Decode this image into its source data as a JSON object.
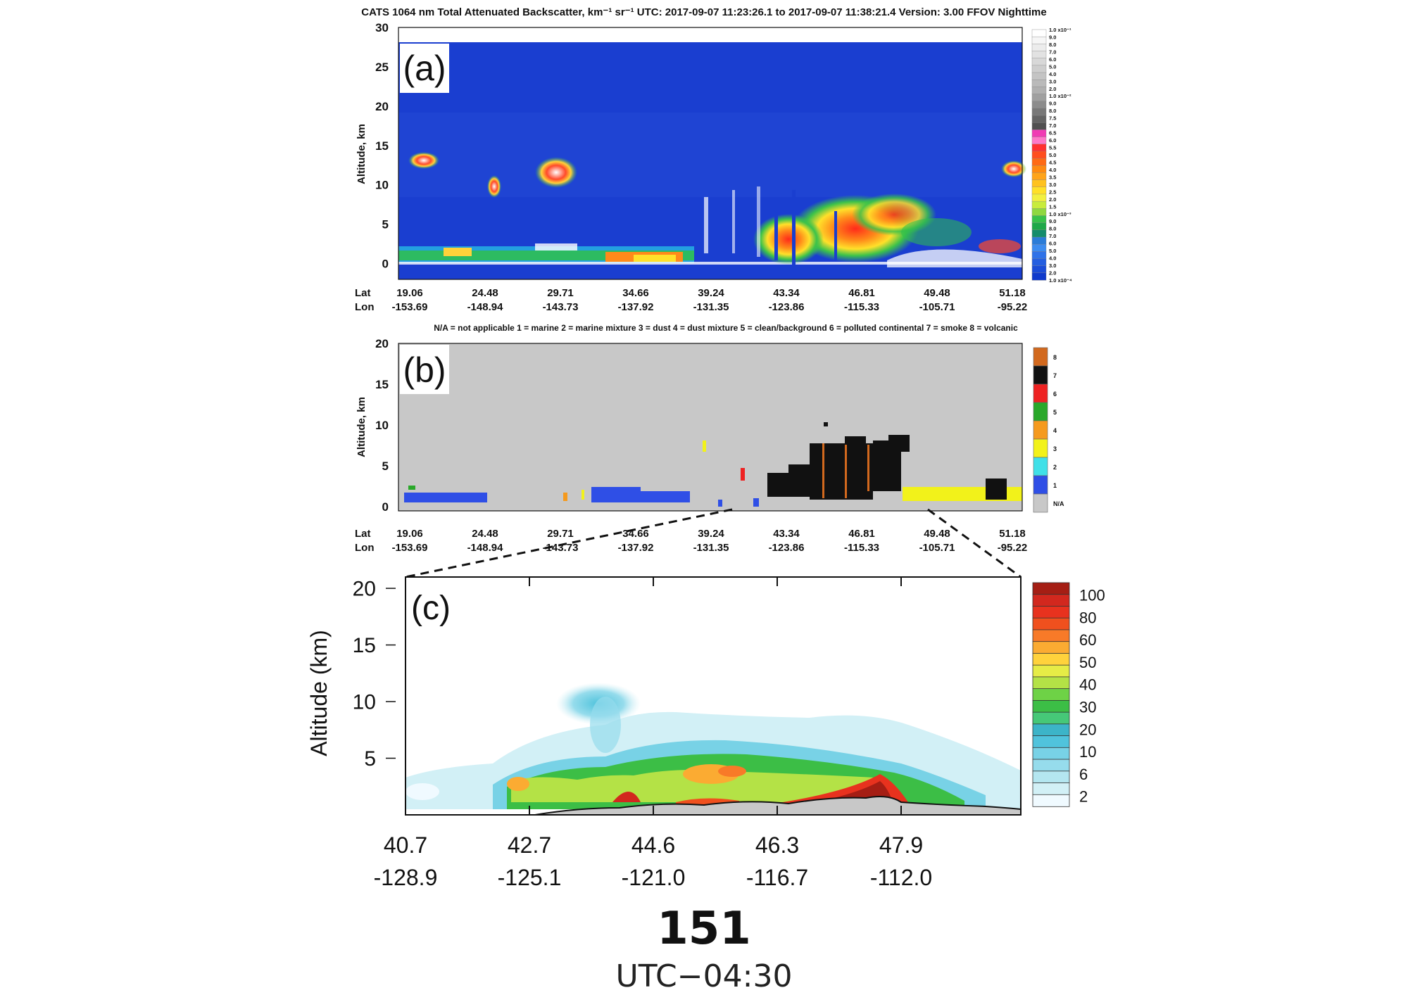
{
  "chart_data": [
    {
      "id": "a",
      "type": "heatmap",
      "panel_label": "(a)",
      "title": "CATS 1064 nm Total Attenuated Backscatter, km⁻¹ sr⁻¹     UTC:  2017-09-07 11:23:26.1  to  2017-09-07 11:38:21.4     Version: 3.00  FFOV  Nighttime",
      "ylabel": "Altitude, km",
      "ylim": [
        -2,
        30
      ],
      "yticks": [
        "30",
        "25",
        "20",
        "15",
        "10",
        "5",
        "0"
      ],
      "x_row_labels": [
        "Lat",
        "Lon"
      ],
      "lat": [
        "19.06",
        "24.48",
        "29.71",
        "34.66",
        "39.24",
        "43.34",
        "46.81",
        "49.48",
        "51.18"
      ],
      "lon": [
        "-153.69",
        "-148.94",
        "-143.73",
        "-137.92",
        "-131.35",
        "-123.86",
        "-115.33",
        "-105.71",
        "-95.22"
      ],
      "colorbar_labels": [
        "1.0 x10⁻¹",
        "9.0",
        "8.0",
        "7.0",
        "6.0",
        "5.0",
        "4.0",
        "3.0",
        "2.0",
        "1.0 x10⁻²",
        "9.0",
        "8.0",
        "7.5",
        "7.0",
        "6.5",
        "6.0",
        "5.5",
        "5.0",
        "4.5",
        "4.0",
        "3.5",
        "3.0",
        "2.5",
        "2.0",
        "1.5",
        "1.0 x10⁻³",
        "9.0",
        "8.0",
        "7.0",
        "6.0",
        "5.0",
        "4.0",
        "3.0",
        "2.0",
        "1.0 x10⁻⁴"
      ],
      "colorbar_colors": [
        "#ffffff",
        "#f6f6f6",
        "#ececec",
        "#e2e2e2",
        "#d8d8d8",
        "#cecece",
        "#c4c4c4",
        "#bababa",
        "#b0b0b0",
        "#a0a0a0",
        "#8c8c8c",
        "#787878",
        "#646464",
        "#505050",
        "#f03cb4",
        "#ff78c8",
        "#ff3030",
        "#ff4e1e",
        "#ff6a14",
        "#ff8a10",
        "#ffa41a",
        "#ffc21e",
        "#ffe028",
        "#f2f040",
        "#c8ec3c",
        "#8fd840",
        "#38c24a",
        "#1ea848",
        "#148c6c",
        "#2a7cd8",
        "#3c8cf0",
        "#2f72e8",
        "#245ee0",
        "#1a4cd8",
        "#0f3acc"
      ]
    },
    {
      "id": "b",
      "type": "heatmap",
      "panel_label": "(b)",
      "legend_text": "N/A = not applicable     1 = marine     2 = marine mixture     3 = dust     4 = dust mixture     5 = clean/background     6 = polluted continental     7 = smoke     8 = volcanic",
      "ylabel": "Altitude, km",
      "ylim": [
        -0.5,
        20
      ],
      "yticks": [
        "20",
        "15",
        "10",
        "5",
        "0"
      ],
      "x_row_labels": [
        "Lat",
        "Lon"
      ],
      "lat": [
        "19.06",
        "24.48",
        "29.71",
        "34.66",
        "39.24",
        "43.34",
        "46.81",
        "49.48",
        "51.18"
      ],
      "lon": [
        "-153.69",
        "-148.94",
        "-143.73",
        "-137.92",
        "-131.35",
        "-123.86",
        "-115.33",
        "-105.71",
        "-95.22"
      ],
      "categories": [
        {
          "label": "8",
          "color": "#d2691e"
        },
        {
          "label": "7",
          "color": "#111111"
        },
        {
          "label": "6",
          "color": "#ee2222"
        },
        {
          "label": "5",
          "color": "#2aa82a"
        },
        {
          "label": "4",
          "color": "#f59a1e"
        },
        {
          "label": "3",
          "color": "#f2f21a"
        },
        {
          "label": "2",
          "color": "#40e0e8"
        },
        {
          "label": "1",
          "color": "#2f4fe6"
        },
        {
          "label": "N/A",
          "color": "#c8c8c8"
        }
      ]
    },
    {
      "id": "c",
      "type": "heatmap",
      "panel_label": "(c)",
      "ylabel": "Altitude (km)",
      "ylim": [
        0,
        21
      ],
      "yticks": [
        "20",
        "15",
        "10",
        "5"
      ],
      "lat": [
        "40.7",
        "42.7",
        "44.6",
        "46.3",
        "47.9"
      ],
      "lon": [
        "-128.9",
        "-125.1",
        "-121.0",
        "-116.7",
        "-112.0"
      ],
      "colorbar_labels": [
        "100",
        "80",
        "60",
        "50",
        "40",
        "30",
        "20",
        "10",
        "6",
        "2"
      ],
      "colorbar_colors": [
        "#a51e14",
        "#d2281e",
        "#e8321e",
        "#f0501e",
        "#f87a28",
        "#fbab32",
        "#ffd23c",
        "#e6ec46",
        "#b4e246",
        "#6ed246",
        "#3cbe46",
        "#46c878",
        "#3cb4c8",
        "#50c3dc",
        "#78d2e6",
        "#96dcec",
        "#b4e6f0",
        "#d2f0f6",
        "#f0faff"
      ]
    }
  ],
  "caption": {
    "number": "151",
    "timezone": "UTC−04:30"
  }
}
